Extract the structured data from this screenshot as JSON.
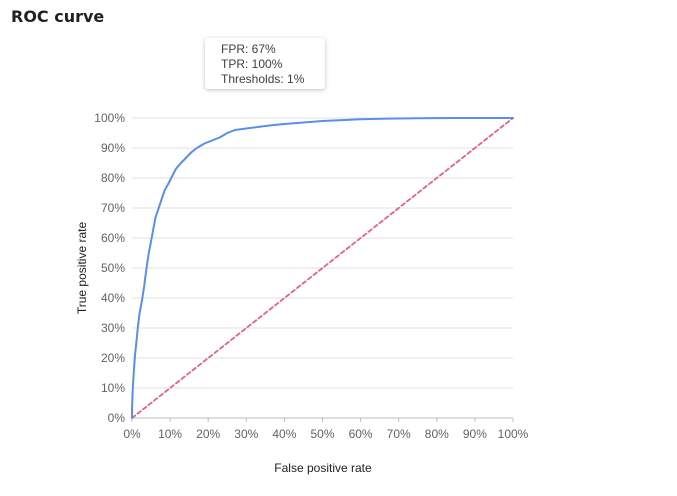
{
  "title": "ROC curve",
  "tooltip": {
    "fpr": "FPR: 67%",
    "tpr": "TPR: 100%",
    "thresholds": "Thresholds: 1%"
  },
  "chart_data": {
    "type": "line",
    "xlabel": "False positive rate",
    "ylabel": "True positive rate",
    "xlim": [
      0,
      100
    ],
    "ylim": [
      0,
      100
    ],
    "grid": true,
    "x_ticks": [
      "0%",
      "10%",
      "20%",
      "30%",
      "40%",
      "50%",
      "60%",
      "70%",
      "80%",
      "90%",
      "100%"
    ],
    "y_ticks": [
      "0%",
      "10%",
      "20%",
      "30%",
      "40%",
      "50%",
      "60%",
      "70%",
      "80%",
      "90%",
      "100%"
    ],
    "series": [
      {
        "color": "#5b8def",
        "style": "solid",
        "x": [
          0,
          0,
          0.2,
          0.5,
          0.8,
          1.2,
          1.6,
          2.0,
          2.6,
          3.2,
          3.8,
          4.4,
          5.0,
          5.6,
          6.2,
          7.0,
          7.8,
          8.6,
          9.5,
          10.5,
          11.5,
          12.5,
          14.0,
          15.5,
          17.0,
          19.0,
          21.0,
          23.0,
          25.0,
          27.0,
          30.0,
          33.0,
          36.0,
          40.0,
          45.0,
          50.0,
          55.0,
          60.0,
          67.0,
          75.0,
          85.0,
          100.0
        ],
        "y": [
          0,
          3,
          10,
          16,
          21,
          26,
          31,
          35,
          39,
          44,
          50,
          55,
          59,
          63,
          67,
          70,
          73,
          76,
          78,
          80.5,
          83,
          84.5,
          86.5,
          88.5,
          90,
          91.5,
          92.5,
          93.5,
          95,
          96,
          96.5,
          97,
          97.5,
          98,
          98.5,
          99,
          99.3,
          99.6,
          99.8,
          99.9,
          100,
          100
        ]
      },
      {
        "color": "#e8608a",
        "style": "dashed",
        "x": [
          0,
          100
        ],
        "y": [
          0,
          100
        ]
      }
    ]
  }
}
